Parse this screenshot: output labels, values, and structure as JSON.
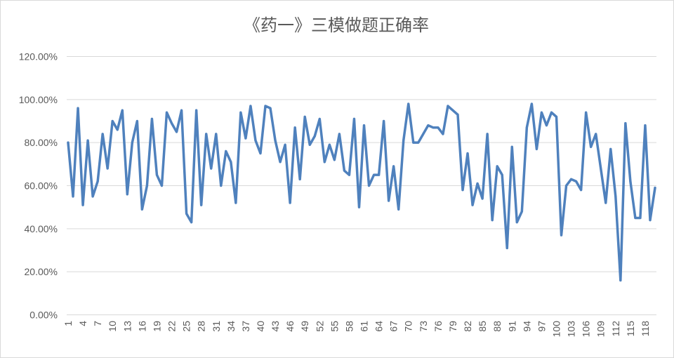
{
  "chart_data": {
    "type": "line",
    "title": "《药一》三模做题正确率",
    "xlabel": "",
    "ylabel": "",
    "ylim": [
      0,
      1.2
    ],
    "y_ticks": [
      "0.00%",
      "20.00%",
      "40.00%",
      "60.00%",
      "80.00%",
      "100.00%",
      "120.00%"
    ],
    "x_ticks": [
      "1",
      "4",
      "7",
      "10",
      "13",
      "16",
      "19",
      "22",
      "25",
      "28",
      "31",
      "34",
      "37",
      "40",
      "43",
      "46",
      "49",
      "52",
      "55",
      "58",
      "61",
      "64",
      "67",
      "70",
      "73",
      "76",
      "79",
      "82",
      "85",
      "88",
      "91",
      "94",
      "97",
      "100",
      "103",
      "106",
      "109",
      "112",
      "115",
      "118"
    ],
    "grid": true,
    "legend": "none",
    "line_color": "#4f81bd",
    "series": [
      {
        "values": [
          0.8,
          0.55,
          0.96,
          0.51,
          0.81,
          0.55,
          0.62,
          0.84,
          0.68,
          0.9,
          0.86,
          0.95,
          0.56,
          0.8,
          0.9,
          0.49,
          0.6,
          0.91,
          0.65,
          0.6,
          0.94,
          0.89,
          0.85,
          0.95,
          0.47,
          0.43,
          0.95,
          0.51,
          0.84,
          0.68,
          0.84,
          0.6,
          0.76,
          0.71,
          0.52,
          0.94,
          0.82,
          0.97,
          0.81,
          0.75,
          0.97,
          0.96,
          0.81,
          0.71,
          0.79,
          0.52,
          0.87,
          0.63,
          0.92,
          0.79,
          0.83,
          0.91,
          0.71,
          0.79,
          0.72,
          0.84,
          0.67,
          0.65,
          0.91,
          0.5,
          0.88,
          0.6,
          0.65,
          0.65,
          0.9,
          0.53,
          0.69,
          0.49,
          0.81,
          0.98,
          0.8,
          0.8,
          0.84,
          0.88,
          0.87,
          0.87,
          0.84,
          0.97,
          0.95,
          0.93,
          0.58,
          0.75,
          0.51,
          0.61,
          0.54,
          0.84,
          0.44,
          0.69,
          0.65,
          0.31,
          0.78,
          0.43,
          0.48,
          0.87,
          0.98,
          0.77,
          0.94,
          0.88,
          0.94,
          0.92,
          0.37,
          0.6,
          0.63,
          0.62,
          0.58,
          0.94,
          0.78,
          0.84,
          0.68,
          0.52,
          0.77,
          0.55,
          0.16,
          0.89,
          0.62,
          0.45,
          0.45,
          0.88,
          0.44,
          0.59
        ]
      }
    ]
  }
}
